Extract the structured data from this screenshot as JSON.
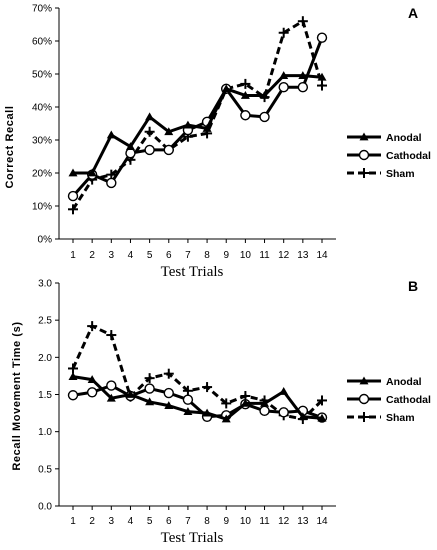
{
  "chart_data": [
    {
      "type": "line",
      "panel_label": "A",
      "x": [
        1,
        2,
        3,
        4,
        5,
        6,
        7,
        8,
        9,
        10,
        11,
        12,
        13,
        14
      ],
      "xlabel": "Test Trials",
      "ylabel": "Correct  Recall",
      "ylim": [
        0,
        70
      ],
      "yticks": [
        0,
        10,
        20,
        30,
        40,
        50,
        60,
        70
      ],
      "ytick_labels": [
        "0%",
        "10%",
        "20%",
        "30%",
        "40%",
        "50%",
        "60%",
        "70%"
      ],
      "grid": false,
      "legend_position": "right",
      "series": [
        {
          "name": "Anodal",
          "values": [
            20,
            20,
            31.5,
            28,
            37,
            32.5,
            34.5,
            33.5,
            45.5,
            43.5,
            43.5,
            49.5,
            49.5,
            49
          ]
        },
        {
          "name": "Cathodal",
          "values": [
            13,
            19.5,
            17,
            26,
            27,
            27,
            33,
            35.5,
            45.5,
            37.5,
            37,
            46,
            46,
            61
          ]
        },
        {
          "name": "Sham",
          "values": [
            9,
            18,
            19.5,
            24,
            32.5,
            27,
            31,
            32,
            45.5,
            47,
            43,
            62.5,
            66,
            46.5
          ]
        }
      ]
    },
    {
      "type": "line",
      "panel_label": "B",
      "x": [
        1,
        2,
        3,
        4,
        5,
        6,
        7,
        8,
        9,
        10,
        11,
        12,
        13,
        14
      ],
      "xlabel": "Test Trials",
      "ylabel": "Recall Movement Time (s)",
      "ylim": [
        0,
        3.0
      ],
      "yticks": [
        0,
        0.5,
        1.0,
        1.5,
        2.0,
        2.5,
        3.0
      ],
      "ytick_labels": [
        "0.0",
        "0.5",
        "1.0",
        "1.5",
        "2.0",
        "2.5",
        "3.0"
      ],
      "grid": false,
      "legend_position": "right",
      "series": [
        {
          "name": "Anodal",
          "values": [
            1.74,
            1.7,
            1.45,
            1.5,
            1.4,
            1.35,
            1.27,
            1.25,
            1.17,
            1.38,
            1.38,
            1.54,
            1.2,
            1.18
          ]
        },
        {
          "name": "Cathodal",
          "values": [
            1.49,
            1.53,
            1.62,
            1.48,
            1.58,
            1.52,
            1.43,
            1.2,
            1.22,
            1.37,
            1.28,
            1.26,
            1.28,
            1.19
          ]
        },
        {
          "name": "Sham",
          "values": [
            1.85,
            2.42,
            2.3,
            1.47,
            1.72,
            1.78,
            1.55,
            1.6,
            1.38,
            1.48,
            1.42,
            1.22,
            1.17,
            1.42
          ]
        }
      ]
    }
  ],
  "styles": {
    "Anodal": {
      "dash": "solid",
      "marker": "triangle",
      "color": "#000000"
    },
    "Cathodal": {
      "dash": "solid",
      "marker": "circle-open",
      "color": "#000000"
    },
    "Sham": {
      "dash": "dashed",
      "marker": "plus",
      "color": "#000000"
    }
  }
}
